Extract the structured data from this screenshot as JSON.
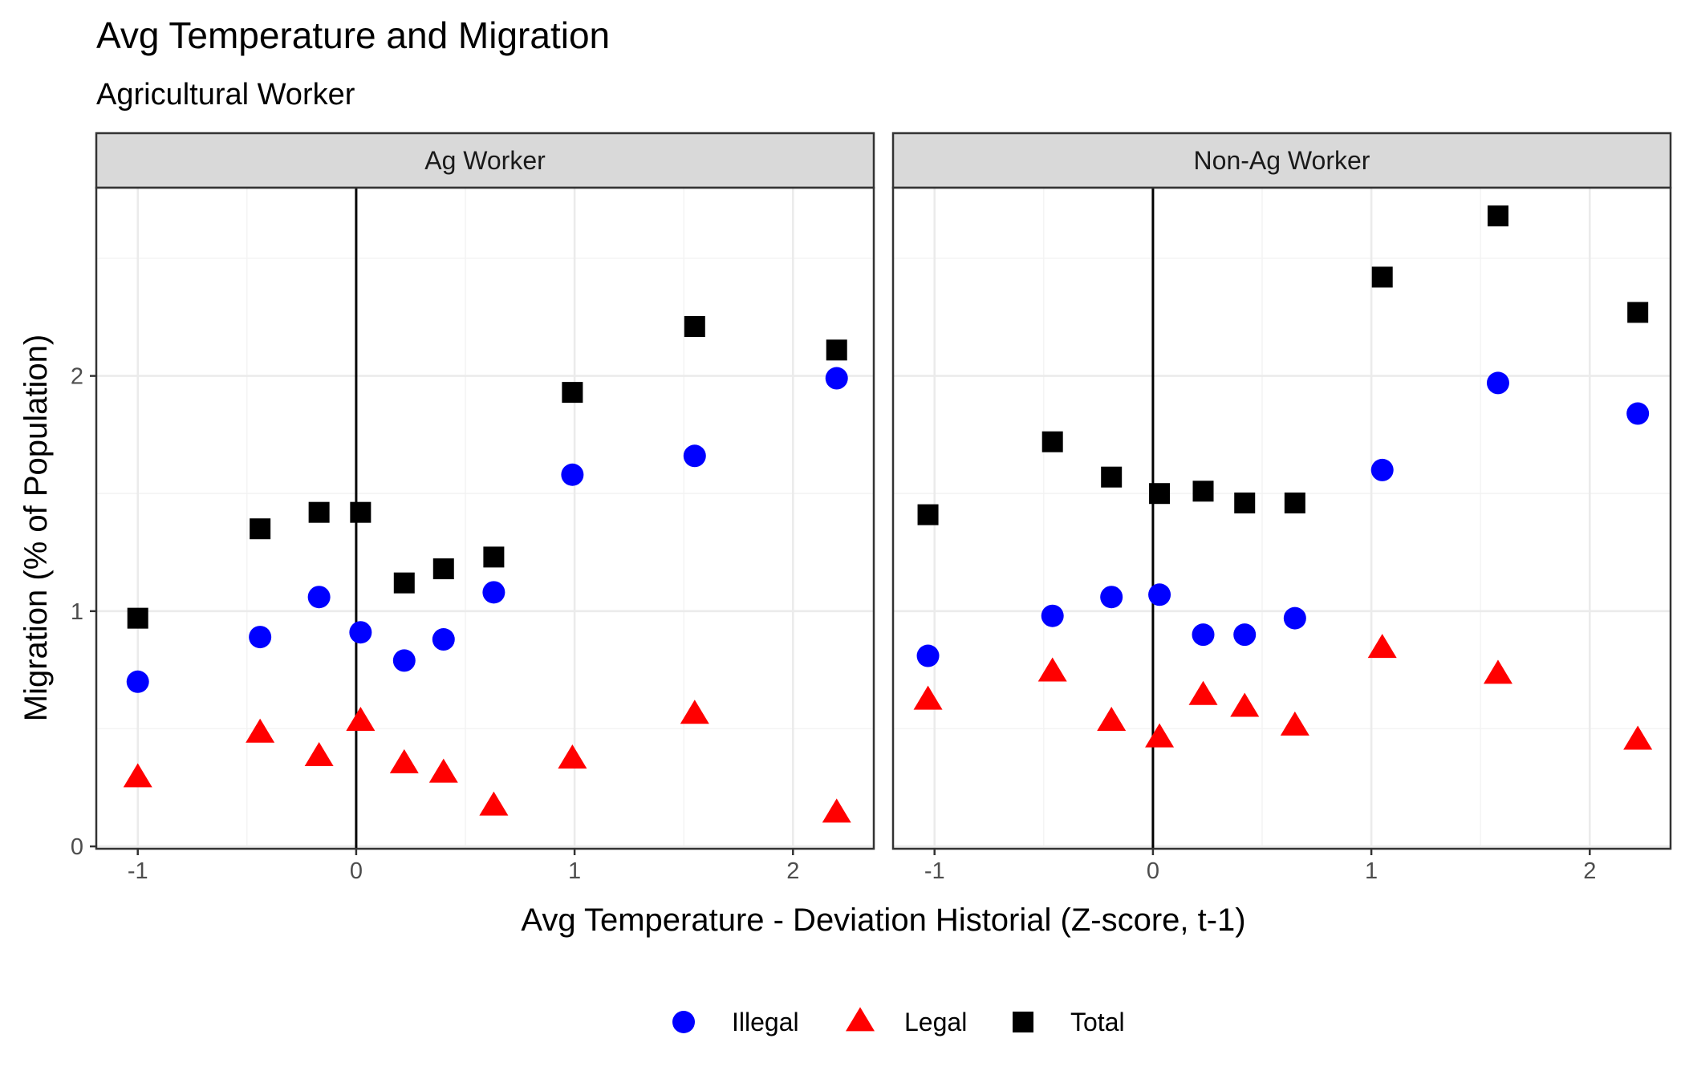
{
  "chart_data": {
    "type": "scatter",
    "title": "Avg Temperature and Migration",
    "subtitle": "Agricultural Worker",
    "xlabel": "Avg Temperature - Deviation Historial (Z-score, t-1)",
    "ylabel": "Migration (% of Population)",
    "xlim": [
      -1.19,
      2.37
    ],
    "ylim": [
      -0.01,
      2.8
    ],
    "x_ticks": [
      -1,
      0,
      1,
      2
    ],
    "x_tick_labels": [
      "-1",
      "0",
      "1",
      "2"
    ],
    "y_ticks": [
      0,
      1,
      2
    ],
    "y_tick_labels": [
      "0",
      "1",
      "2"
    ],
    "vline_x": 0,
    "grid": true,
    "legend_position": "bottom",
    "series_styles": [
      {
        "name": "Illegal",
        "shape": "circle",
        "color": "#0000ff"
      },
      {
        "name": "Legal",
        "shape": "triangle",
        "color": "#ff0000"
      },
      {
        "name": "Total",
        "shape": "square",
        "color": "#000000"
      }
    ],
    "panels": [
      {
        "label": "Ag Worker",
        "series": [
          {
            "name": "Illegal",
            "x": [
              -1.0,
              -0.44,
              -0.17,
              0.02,
              0.22,
              0.4,
              0.63,
              0.99,
              1.55,
              2.2
            ],
            "y": [
              0.7,
              0.89,
              1.06,
              0.91,
              0.79,
              0.88,
              1.08,
              1.58,
              1.66,
              1.99
            ]
          },
          {
            "name": "Legal",
            "x": [
              -1.0,
              -0.44,
              -0.17,
              0.02,
              0.22,
              0.4,
              0.63,
              0.99,
              1.55,
              2.2
            ],
            "y": [
              0.29,
              0.48,
              0.38,
              0.53,
              0.35,
              0.31,
              0.17,
              0.37,
              0.56,
              0.14
            ]
          },
          {
            "name": "Total",
            "x": [
              -1.0,
              -0.44,
              -0.17,
              0.02,
              0.22,
              0.4,
              0.63,
              0.99,
              1.55,
              2.2
            ],
            "y": [
              0.97,
              1.35,
              1.42,
              1.42,
              1.12,
              1.18,
              1.23,
              1.93,
              2.21,
              2.11
            ]
          }
        ]
      },
      {
        "label": "Non-Ag Worker",
        "series": [
          {
            "name": "Illegal",
            "x": [
              -1.03,
              -0.46,
              -0.19,
              0.03,
              0.23,
              0.42,
              0.65,
              1.05,
              1.58,
              2.22
            ],
            "y": [
              0.81,
              0.98,
              1.06,
              1.07,
              0.9,
              0.9,
              0.97,
              1.6,
              1.97,
              1.84
            ]
          },
          {
            "name": "Legal",
            "x": [
              -1.03,
              -0.46,
              -0.19,
              0.03,
              0.23,
              0.42,
              0.65,
              1.05,
              1.58,
              2.22
            ],
            "y": [
              0.62,
              0.74,
              0.53,
              0.46,
              0.64,
              0.59,
              0.51,
              0.84,
              0.73,
              0.45
            ]
          },
          {
            "name": "Total",
            "x": [
              -1.03,
              -0.46,
              -0.19,
              0.03,
              0.23,
              0.42,
              0.65,
              1.05,
              1.58,
              2.22
            ],
            "y": [
              1.41,
              1.72,
              1.57,
              1.5,
              1.51,
              1.46,
              1.46,
              2.42,
              2.68,
              2.27
            ]
          }
        ]
      }
    ]
  }
}
